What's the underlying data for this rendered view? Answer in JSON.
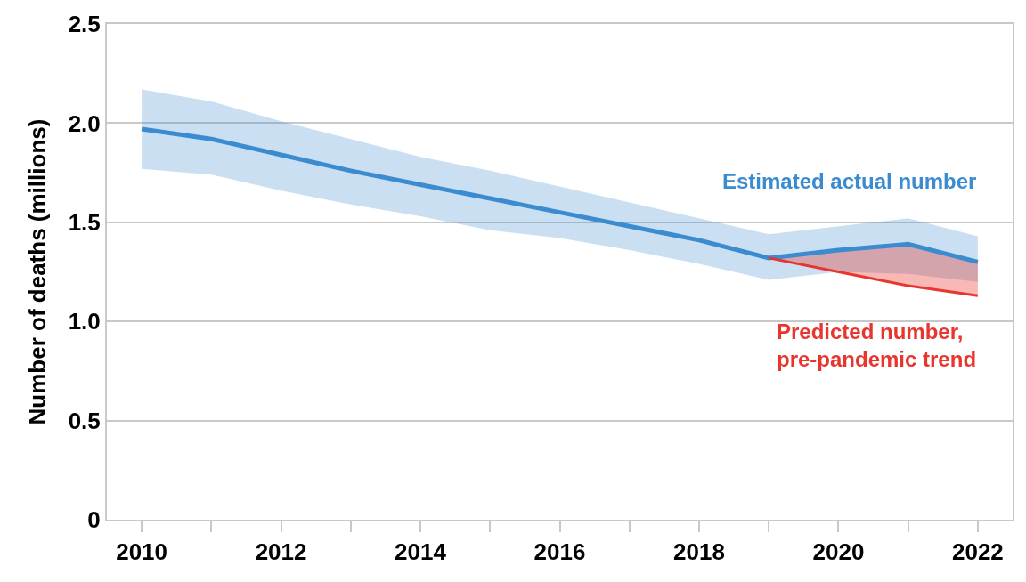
{
  "chart_data": {
    "type": "line",
    "ylabel": "Number of deaths (millions)",
    "x": [
      2010,
      2011,
      2012,
      2013,
      2014,
      2015,
      2016,
      2017,
      2018,
      2019,
      2020,
      2021,
      2022
    ],
    "series": [
      {
        "name": "Estimated actual number",
        "color": "#3a8bd0",
        "values": [
          1.97,
          1.92,
          1.84,
          1.76,
          1.69,
          1.62,
          1.55,
          1.48,
          1.41,
          1.32,
          1.36,
          1.39,
          1.3
        ],
        "lower": [
          1.77,
          1.74,
          1.66,
          1.59,
          1.53,
          1.46,
          1.42,
          1.36,
          1.29,
          1.21,
          1.25,
          1.24,
          1.2
        ],
        "upper": [
          2.17,
          2.11,
          2.01,
          1.92,
          1.83,
          1.76,
          1.68,
          1.6,
          1.52,
          1.44,
          1.48,
          1.52,
          1.43
        ]
      },
      {
        "name": "Predicted number,\npre-pandemic trend",
        "color": "#e8352e",
        "x": [
          2019,
          2020,
          2021,
          2022
        ],
        "values": [
          1.32,
          1.25,
          1.18,
          1.13
        ],
        "lower": [
          1.32,
          1.25,
          1.18,
          1.13
        ],
        "upper": [
          1.32,
          1.36,
          1.39,
          1.3
        ]
      }
    ],
    "xlim": [
      2009.5,
      2022.5
    ],
    "xticks": [
      2010,
      {
        "value": 2011,
        "label": null
      },
      2012,
      {
        "value": 2013,
        "label": null
      },
      2014,
      {
        "value": 2015,
        "label": null
      },
      2016,
      {
        "value": 2017,
        "label": null
      },
      2018,
      {
        "value": 2019,
        "label": null
      },
      2020,
      {
        "value": 2021,
        "label": null
      },
      2022
    ],
    "ylim": [
      0,
      2.5
    ],
    "yticks": [
      {
        "value": 0,
        "label": "0"
      },
      {
        "value": 0.5,
        "label": "0.5"
      },
      {
        "value": 1,
        "label": "1.0"
      },
      1.5,
      {
        "value": 2,
        "label": "2.0"
      },
      2.5
    ],
    "grid": "y",
    "legend": false,
    "marker": "none",
    "line_style": "solid"
  }
}
